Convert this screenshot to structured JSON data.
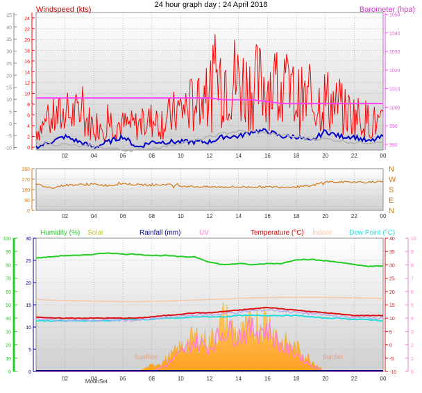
{
  "title": "24 hour graph day : 24 April 2018",
  "colors": {
    "background": "#ffffff",
    "plot_top": "#ffffff",
    "plot_bottom": "#cfcfcf",
    "grid": "#9aa0b0",
    "windspeed": "#ff0000",
    "wind_avg": "#0000cc",
    "barometer": "#ff44ff",
    "baro_grey": "#b0b0b0",
    "direction": "#d07818",
    "humidity": "#22cc22",
    "solar": "#ffb020",
    "rainfall": "#000080",
    "uv": "#ff80d0",
    "temperature": "#dd1111",
    "indoor": "#f4c8a8",
    "dewpoint": "#22dddd"
  },
  "hour_ticks": [
    "02",
    "04",
    "06",
    "08",
    "10",
    "12",
    "14",
    "16",
    "18",
    "20",
    "22",
    "00"
  ],
  "chart_data": [
    {
      "type": "line",
      "name": "wind-barometer",
      "x": [
        0,
        1,
        2,
        3,
        4,
        5,
        6,
        7,
        8,
        9,
        10,
        11,
        12,
        13,
        14,
        15,
        16,
        17,
        18,
        19,
        20,
        21,
        22,
        23,
        24
      ],
      "series": [
        {
          "name": "Windspeed (kts)",
          "axis": "left",
          "color": "#ff0000",
          "values": [
            3,
            5,
            6,
            6,
            4,
            5,
            4,
            4,
            5,
            5,
            7,
            8,
            10,
            14,
            12,
            11,
            12,
            11,
            9,
            8,
            9,
            7,
            6,
            5,
            4
          ]
        },
        {
          "name": "Windspeed (kts) avg",
          "axis": "left",
          "color": "#0000cc",
          "values": [
            0,
            1,
            2,
            1,
            0,
            1,
            2,
            0,
            1,
            1,
            1,
            1,
            1,
            2,
            2,
            3,
            3,
            2,
            2,
            1,
            3,
            2,
            2,
            1,
            2
          ]
        },
        {
          "name": "Barometer (hpa)",
          "axis": "right",
          "color": "#ff44ff",
          "values": [
            1005,
            1005,
            1005,
            1005,
            1005,
            1005,
            1005,
            1005,
            1005,
            1005,
            1005,
            1005,
            1005,
            1004,
            1004,
            1004,
            1003,
            1002,
            1002,
            1002,
            1002,
            1002,
            1002,
            1002,
            1002
          ]
        },
        {
          "name": "grey",
          "axis": "right",
          "color": "#b0b0b0",
          "values": [
            981,
            980,
            980,
            979,
            979,
            978,
            977,
            977,
            978,
            979,
            981,
            982,
            984,
            986,
            987,
            987,
            986,
            985,
            984,
            983,
            983,
            982,
            981,
            981,
            982
          ]
        }
      ],
      "left_axis": {
        "label": "Windspeed (kts)",
        "ticks": [
          -10,
          -5,
          0,
          5,
          10,
          15,
          20,
          25,
          30,
          35,
          40,
          45
        ],
        "range": [
          -11,
          46
        ]
      },
      "inner_axis": {
        "ticks": [
          0,
          2,
          4,
          6,
          8,
          10,
          12,
          14,
          16,
          18,
          20,
          22,
          24
        ],
        "range": [
          -0.5,
          25
        ]
      },
      "right_axis": {
        "label": "Barometer (hpa)",
        "ticks": [
          980,
          990,
          1000,
          1010,
          1020,
          1030,
          1040,
          1050
        ],
        "range": [
          977,
          1051
        ]
      }
    },
    {
      "type": "line",
      "name": "wind-direction",
      "x": [
        0,
        1,
        2,
        3,
        4,
        5,
        6,
        7,
        8,
        9,
        10,
        11,
        12,
        13,
        14,
        15,
        16,
        17,
        18,
        19,
        20,
        21,
        22,
        23,
        24
      ],
      "series": [
        {
          "name": "direction",
          "color": "#d07818",
          "values": [
            225,
            195,
            218,
            222,
            225,
            215,
            232,
            222,
            218,
            225,
            212,
            205,
            202,
            203,
            202,
            203,
            202,
            203,
            203,
            210,
            248,
            244,
            245,
            244,
            246
          ]
        }
      ],
      "left_axis": {
        "ticks": [
          0,
          90,
          180,
          270,
          360
        ],
        "range": [
          0,
          360
        ]
      },
      "right_axis": {
        "ticks": [
          "N",
          "W",
          "S",
          "E",
          "N"
        ]
      }
    },
    {
      "type": "area",
      "name": "climate",
      "x": [
        0,
        1,
        2,
        3,
        4,
        5,
        6,
        7,
        8,
        9,
        10,
        11,
        12,
        13,
        14,
        15,
        16,
        17,
        18,
        19,
        20,
        21,
        22,
        23,
        24
      ],
      "labels": [
        "Humidity (%)",
        "Solar",
        "Rainfall (mm)",
        "UV",
        "Temperature (°C)",
        "Indoor",
        "Dew Point (°C)"
      ],
      "series": [
        {
          "name": "Humidity (%)",
          "color": "#22cc22",
          "values": [
            85,
            86,
            87,
            87,
            88,
            89,
            88,
            88,
            87,
            87,
            86,
            86,
            82,
            80,
            81,
            80,
            81,
            81,
            84,
            84,
            83,
            82,
            80,
            79,
            79
          ]
        },
        {
          "name": "Solar",
          "color": "#ffb020",
          "values": [
            0,
            0,
            0,
            0,
            0,
            0,
            0,
            0,
            5,
            10,
            20,
            30,
            25,
            45,
            30,
            40,
            45,
            25,
            20,
            10,
            0,
            0,
            0,
            0,
            0
          ]
        },
        {
          "name": "Rainfall (mm)",
          "color": "#000080",
          "values": [
            0,
            0,
            0,
            0,
            0,
            0,
            0,
            0,
            0,
            0,
            0,
            0,
            0,
            0,
            0,
            0,
            0,
            0,
            0,
            0,
            0,
            0,
            0,
            0,
            0
          ]
        },
        {
          "name": "UV",
          "color": "#ff80d0",
          "values": [
            0,
            0,
            0,
            0,
            0,
            0,
            0,
            0,
            0,
            0.5,
            1.5,
            2.5,
            2,
            3.5,
            3,
            3.5,
            3.5,
            2,
            1.5,
            0.5,
            0,
            0,
            0,
            0,
            0
          ]
        },
        {
          "name": "Temperature (°C)",
          "color": "#dd1111",
          "values": [
            10.5,
            10,
            10,
            10,
            10,
            10,
            10,
            10,
            10.5,
            11,
            11.5,
            12,
            12,
            12.5,
            13,
            13.5,
            14,
            13.5,
            13,
            12.5,
            12,
            11.5,
            11,
            11,
            11
          ]
        },
        {
          "name": "Indoor",
          "color": "#f4c8a8",
          "values": [
            17,
            16.8,
            16.6,
            16.5,
            16.4,
            16.3,
            16.2,
            16.2,
            16.3,
            16.4,
            16.6,
            16.8,
            17,
            17.2,
            17.4,
            17.6,
            17.7,
            17.8,
            17.8,
            17.8,
            17.8,
            17.7,
            17.6,
            17.5,
            17.4
          ]
        },
        {
          "name": "Dew Point (°C)",
          "color": "#22dddd",
          "values": [
            9,
            9,
            9,
            9,
            9,
            9,
            9.5,
            9.5,
            9.5,
            10,
            10,
            10.5,
            10.5,
            10.5,
            11,
            11,
            11,
            11,
            11,
            10.5,
            10,
            10,
            9.5,
            9.5,
            9
          ]
        }
      ],
      "annotations": [
        "SunRise",
        "SunSet",
        "MoonSet"
      ],
      "axes": {
        "humidity": {
          "ticks": [
            0,
            10,
            20,
            30,
            40,
            50,
            60,
            70,
            80,
            90,
            100
          ],
          "range": [
            0,
            100
          ]
        },
        "rain": {
          "ticks": [
            0,
            5,
            10,
            15,
            20,
            25,
            30
          ],
          "range": [
            0,
            30
          ]
        },
        "temp": {
          "ticks": [
            -10,
            -5,
            0,
            5,
            10,
            15,
            20,
            25,
            30,
            35,
            40
          ],
          "range": [
            -10,
            40
          ]
        },
        "uv": {
          "ticks": [
            0,
            1,
            2,
            3,
            4,
            5,
            6,
            7,
            8,
            9,
            10
          ],
          "range": [
            0,
            10
          ]
        }
      }
    }
  ]
}
